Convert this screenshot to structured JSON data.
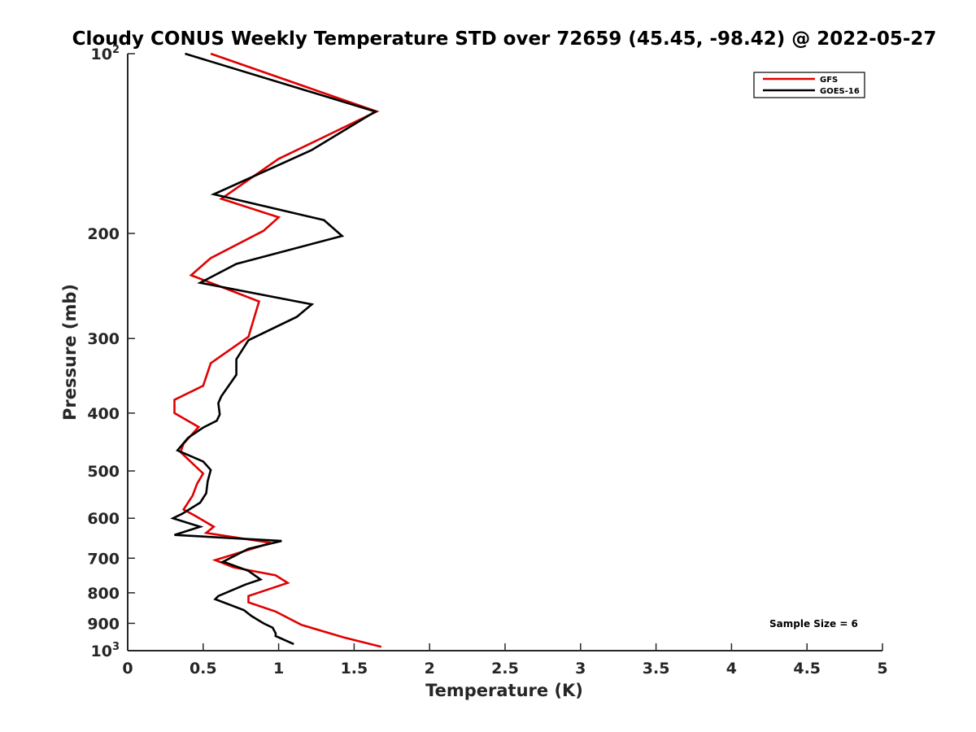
{
  "chart_data": {
    "type": "line",
    "title": "Cloudy CONUS Weekly Temperature STD over 72659 (45.45, -98.42) @ 2022-05-27",
    "xlabel": "Temperature (K)",
    "ylabel": "Pressure (mb)",
    "xlim": [
      0,
      5
    ],
    "ylim": [
      100,
      1000
    ],
    "y_scale": "log",
    "y_reversed": true,
    "x_ticks": [
      "0",
      "0.5",
      "1",
      "1.5",
      "2",
      "2.5",
      "3",
      "3.5",
      "4",
      "4.5",
      "5"
    ],
    "y_ticks": [
      {
        "value": 100,
        "base": "10",
        "exp": "2"
      },
      {
        "value": 200,
        "label": "200"
      },
      {
        "value": 300,
        "label": "300"
      },
      {
        "value": 400,
        "label": "400"
      },
      {
        "value": 500,
        "label": "500"
      },
      {
        "value": 600,
        "label": "600"
      },
      {
        "value": 700,
        "label": "700"
      },
      {
        "value": 800,
        "label": "800"
      },
      {
        "value": 900,
        "label": "900"
      },
      {
        "value": 1000,
        "base": "10",
        "exp": "3"
      }
    ],
    "legend_position": "top-right",
    "annotation": "Sample Size = 6",
    "grid": false,
    "series": [
      {
        "name": "GFS",
        "color": "#e00000",
        "points": [
          [
            0.55,
            100
          ],
          [
            1.65,
            125
          ],
          [
            1.0,
            150
          ],
          [
            0.62,
            175
          ],
          [
            1.0,
            188
          ],
          [
            0.9,
            198
          ],
          [
            0.55,
            220
          ],
          [
            0.42,
            235
          ],
          [
            0.87,
            260
          ],
          [
            0.8,
            298
          ],
          [
            0.55,
            330
          ],
          [
            0.5,
            360
          ],
          [
            0.31,
            380
          ],
          [
            0.31,
            400
          ],
          [
            0.47,
            422
          ],
          [
            0.37,
            450
          ],
          [
            0.35,
            465
          ],
          [
            0.5,
            505
          ],
          [
            0.46,
            525
          ],
          [
            0.43,
            550
          ],
          [
            0.37,
            580
          ],
          [
            0.45,
            595
          ],
          [
            0.57,
            620
          ],
          [
            0.52,
            635
          ],
          [
            0.95,
            660
          ],
          [
            0.58,
            705
          ],
          [
            0.7,
            725
          ],
          [
            0.98,
            748
          ],
          [
            1.06,
            770
          ],
          [
            0.8,
            810
          ],
          [
            0.8,
            830
          ],
          [
            0.98,
            860
          ],
          [
            1.15,
            905
          ],
          [
            1.43,
            950
          ],
          [
            1.68,
            985
          ]
        ]
      },
      {
        "name": "GOES-16",
        "color": "#000000",
        "points": [
          [
            0.38,
            100
          ],
          [
            1.64,
            125
          ],
          [
            1.22,
            145
          ],
          [
            0.57,
            172
          ],
          [
            1.3,
            190
          ],
          [
            1.42,
            202
          ],
          [
            0.72,
            225
          ],
          [
            0.48,
            242
          ],
          [
            1.22,
            263
          ],
          [
            1.12,
            276
          ],
          [
            0.8,
            302
          ],
          [
            0.72,
            325
          ],
          [
            0.72,
            345
          ],
          [
            0.62,
            375
          ],
          [
            0.6,
            385
          ],
          [
            0.61,
            402
          ],
          [
            0.59,
            412
          ],
          [
            0.5,
            423
          ],
          [
            0.4,
            440
          ],
          [
            0.33,
            462
          ],
          [
            0.5,
            482
          ],
          [
            0.55,
            498
          ],
          [
            0.53,
            520
          ],
          [
            0.52,
            545
          ],
          [
            0.48,
            565
          ],
          [
            0.36,
            590
          ],
          [
            0.3,
            600
          ],
          [
            0.48,
            620
          ],
          [
            0.31,
            640
          ],
          [
            1.02,
            655
          ],
          [
            0.8,
            675
          ],
          [
            0.63,
            710
          ],
          [
            0.65,
            712
          ],
          [
            0.8,
            735
          ],
          [
            0.88,
            760
          ],
          [
            0.78,
            775
          ],
          [
            0.6,
            810
          ],
          [
            0.58,
            820
          ],
          [
            0.77,
            855
          ],
          [
            0.82,
            875
          ],
          [
            0.9,
            900
          ],
          [
            0.96,
            915
          ],
          [
            0.98,
            935
          ],
          [
            0.98,
            945
          ],
          [
            1.1,
            975
          ]
        ]
      }
    ]
  }
}
